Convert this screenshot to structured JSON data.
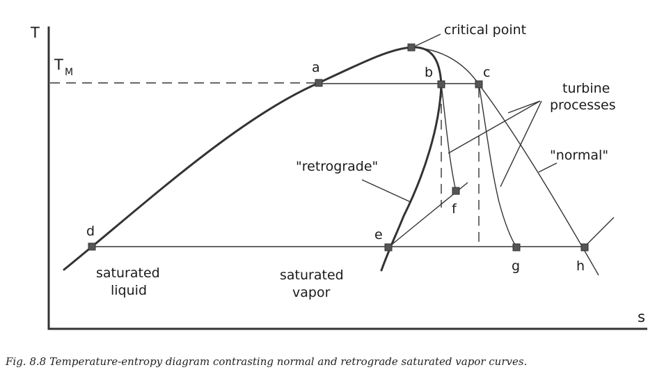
{
  "axes": {
    "y_label": "T",
    "x_label": "s",
    "tm_main": "T",
    "tm_sub": "M"
  },
  "points": {
    "a": "a",
    "b": "b",
    "c": "c",
    "d": "d",
    "e": "e",
    "f": "f",
    "g": "g",
    "h": "h"
  },
  "labels": {
    "critical_point": "critical point",
    "turbine_line1": "turbine",
    "turbine_line2": "processes",
    "retrograde": "\"retrograde\"",
    "normal": "\"normal\"",
    "saturated_liquid_line1": "saturated",
    "saturated_liquid_line2": "liquid",
    "saturated_vapor_line1": "saturated",
    "saturated_vapor_line2": "vapor"
  },
  "caption": "Fig. 8.8  Temperature-entropy diagram contrasting normal and retrograde saturated vapor curves."
}
